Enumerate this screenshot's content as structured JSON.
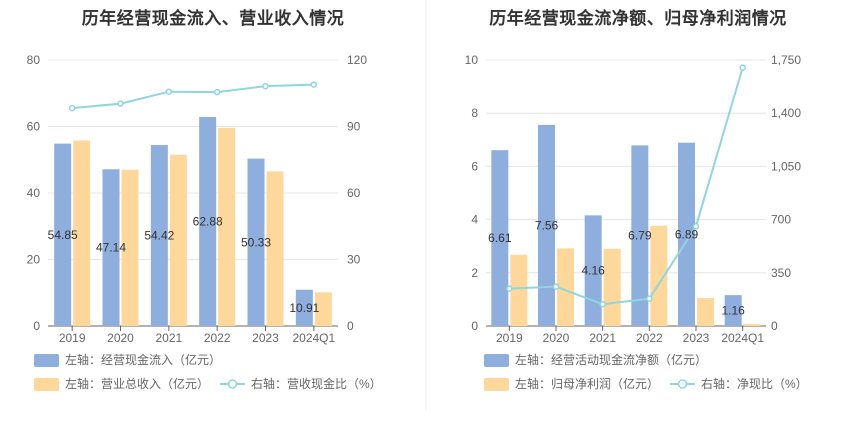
{
  "chart_data": [
    {
      "type": "bar",
      "title": "历年经营现金流入、营业收入情况",
      "categories": [
        "2019",
        "2020",
        "2021",
        "2022",
        "2023",
        "2024Q1"
      ],
      "y_left_ticks": [
        "0",
        "20",
        "40",
        "60",
        "80"
      ],
      "y_right_ticks": [
        "0",
        "30",
        "60",
        "90",
        "120"
      ],
      "ylim_left": [
        0,
        80
      ],
      "ylim_right": [
        0,
        120
      ],
      "series": [
        {
          "name": "左轴：经营现金流入（亿元）",
          "kind": "bar",
          "axis": "left",
          "color": "#8eaedd",
          "values": [
            54.85,
            47.14,
            54.42,
            62.88,
            50.33,
            10.91
          ],
          "labels": [
            "54.85",
            "47.14",
            "54.42",
            "62.88",
            "50.33",
            "10.91"
          ]
        },
        {
          "name": "左轴：营业总收入（亿元）",
          "kind": "bar",
          "axis": "left",
          "color": "#fed89a",
          "values": [
            55.8,
            47.0,
            51.5,
            59.6,
            46.5,
            10.1
          ]
        },
        {
          "name": "右轴：营收现金比（%）",
          "kind": "line",
          "axis": "right",
          "color": "#8fd6df",
          "values": [
            98.3,
            100.3,
            105.7,
            105.5,
            108.2,
            108.9
          ]
        }
      ]
    },
    {
      "type": "bar",
      "title": "历年经营现金流净额、归母净利润情况",
      "categories": [
        "2019",
        "2020",
        "2021",
        "2022",
        "2023",
        "2024Q1"
      ],
      "y_left_ticks": [
        "0",
        "2",
        "4",
        "6",
        "8",
        "10"
      ],
      "y_right_ticks": [
        "0",
        "350",
        "700",
        "1,050",
        "1,400",
        "1,750"
      ],
      "ylim_left": [
        0,
        10
      ],
      "ylim_right": [
        0,
        1750
      ],
      "series": [
        {
          "name": "左轴：经营活动现金流净额（亿元）",
          "kind": "bar",
          "axis": "left",
          "color": "#8eaedd",
          "values": [
            6.61,
            7.56,
            4.16,
            6.79,
            6.89,
            1.16
          ],
          "labels": [
            "6.61",
            "7.56",
            "4.16",
            "6.79",
            "6.89",
            "1.16"
          ]
        },
        {
          "name": "左轴：归母净利润（亿元）",
          "kind": "bar",
          "axis": "left",
          "color": "#fed89a",
          "values": [
            2.68,
            2.92,
            2.9,
            3.77,
            1.05,
            0.07
          ]
        },
        {
          "name": "右轴：净现比（%）",
          "kind": "line",
          "axis": "right",
          "color": "#8fd6df",
          "values": [
            246,
            259,
            143,
            180,
            656,
            1700
          ]
        }
      ]
    }
  ]
}
